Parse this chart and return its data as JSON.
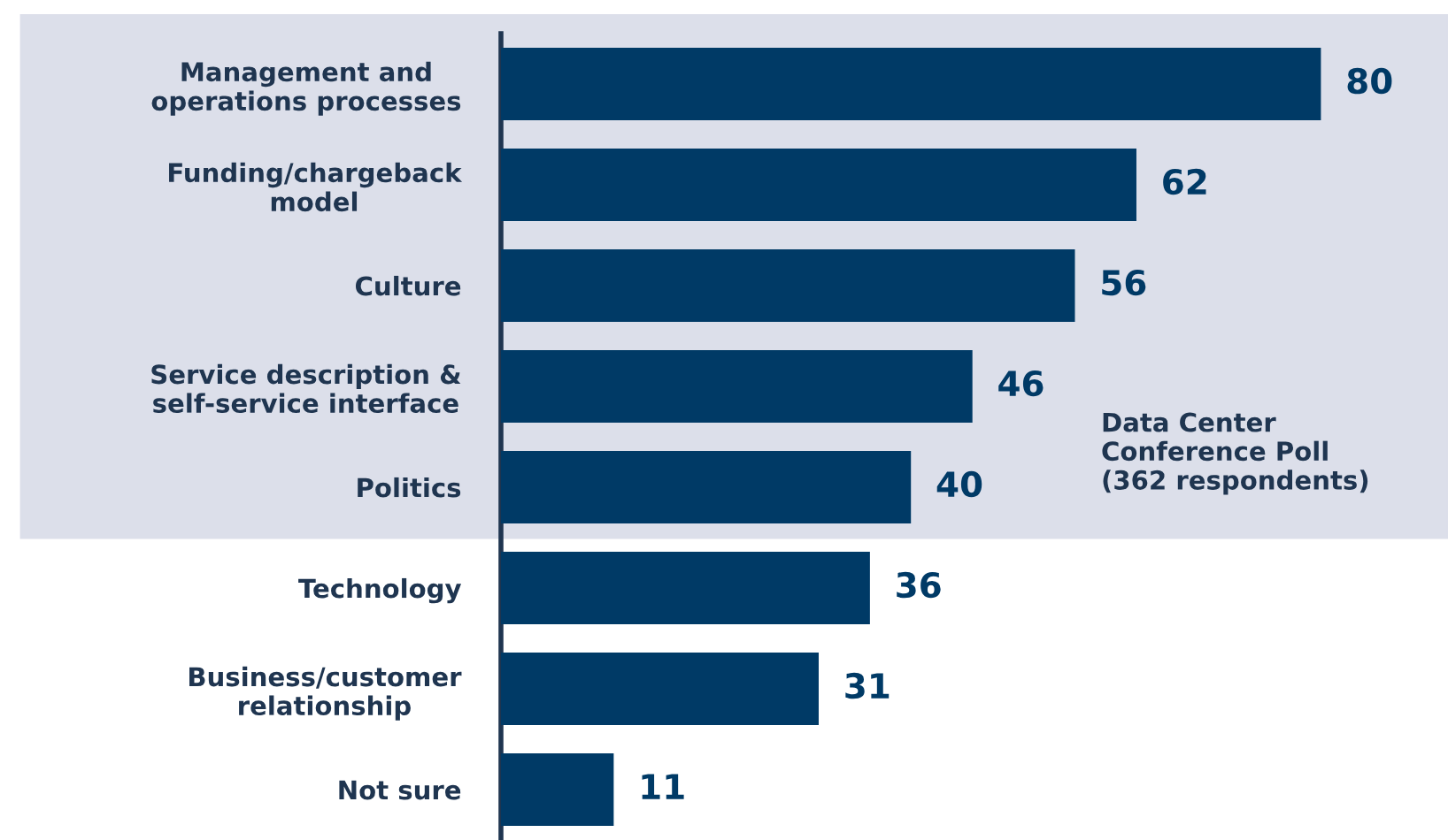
{
  "chart_data": {
    "type": "bar",
    "orientation": "horizontal",
    "categories": [
      "Management and\noperations processes",
      "Funding/chargeback\nmodel",
      "Culture",
      "Service description &\nself-service interface",
      "Politics",
      "Technology",
      "Business/customer\nrelationship",
      "Not sure"
    ],
    "values": [
      80,
      62,
      56,
      46,
      40,
      36,
      31,
      11
    ],
    "color": "#003a66",
    "data_labels": true,
    "bands": [
      {
        "axis": "y",
        "from": "Management and\noperations processes",
        "to": "Politics",
        "color": "#dcdfea"
      }
    ],
    "annotations": [
      "Data Center\nConference Poll\n(362 respondents)"
    ]
  }
}
